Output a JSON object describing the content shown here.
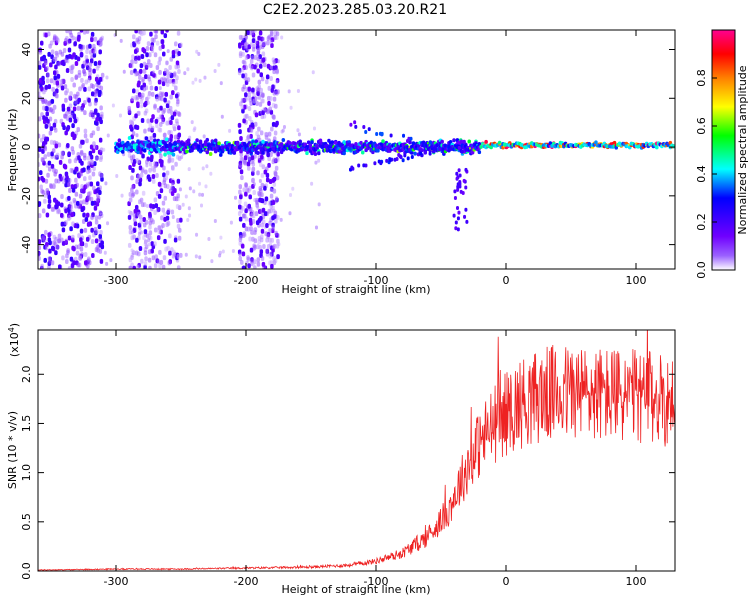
{
  "figure_title": "C2E2.2023.285.03.20.R21",
  "chart_data": [
    {
      "type": "heatmap",
      "xlabel": "Height of straight line (km)",
      "ylabel": "Frequency (Hz)",
      "xlim": [
        -360,
        130
      ],
      "ylim": [
        -50,
        48
      ],
      "xticks": [
        -300,
        -200,
        -100,
        0,
        100
      ],
      "yticks": [
        -40,
        -20,
        0,
        20,
        40
      ],
      "colorbar": {
        "label": "Normalized spectral amplitude",
        "range": [
          0.0,
          1.0
        ],
        "ticks": [
          "0.0",
          "0.2",
          "0.4",
          "0.6",
          "0.8"
        ],
        "colors": [
          "#ffffff",
          "#8000ff",
          "#0000ff",
          "#00ffff",
          "#00ff00",
          "#ffff00",
          "#ff8000",
          "#ff0000",
          "#ff00a0"
        ]
      },
      "features": {
        "carrier_frequency_hz": 0,
        "scattered_noise_heights_km": [
          [
            -360,
            -310
          ],
          [
            -290,
            -250
          ],
          [
            -205,
            -175
          ]
        ],
        "dropouts_heights_km": [
          [
            -310,
            -290
          ],
          [
            -175,
            -160
          ]
        ]
      }
    },
    {
      "type": "line",
      "xlabel": "Height of straight line (km)",
      "ylabel": "SNR (10 * v/v)",
      "yscale_label": "(x10",
      "yscale_exponent": "4",
      "xlim": [
        -360,
        130
      ],
      "ylim": [
        0.0,
        2.45
      ],
      "xticks": [
        -300,
        -200,
        -100,
        0,
        100
      ],
      "yticks": [
        "0.0",
        "0.5",
        "1.0",
        "1.5",
        "2.0"
      ],
      "color": "#ee2222",
      "series": [
        {
          "x": [
            -360,
            -300,
            -250,
            -200,
            -150,
            -120,
            -100,
            -80,
            -60,
            -45,
            -35,
            -25,
            -15,
            -5,
            10,
            30,
            50,
            70,
            90,
            110,
            130
          ],
          "values": [
            0.01,
            0.02,
            0.02,
            0.03,
            0.04,
            0.06,
            0.1,
            0.18,
            0.35,
            0.6,
            0.9,
            1.2,
            1.4,
            1.55,
            1.7,
            1.8,
            1.82,
            1.8,
            1.78,
            1.76,
            1.72
          ]
        }
      ]
    }
  ]
}
